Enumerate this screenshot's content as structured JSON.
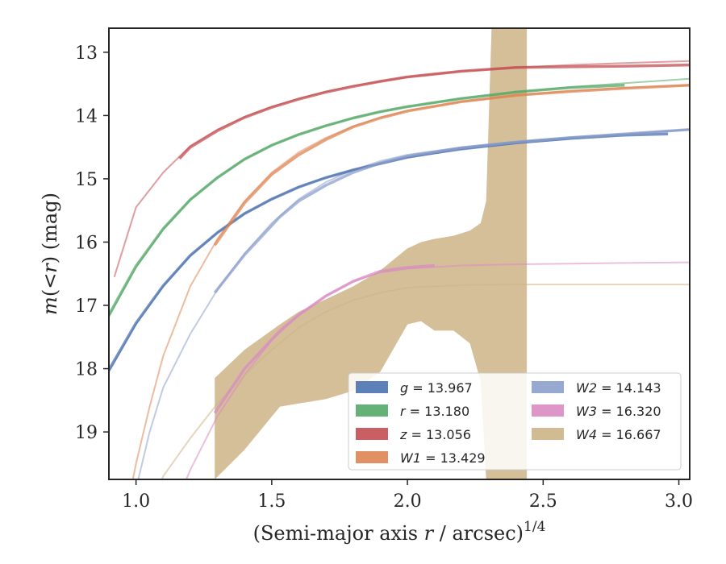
{
  "chart_data": {
    "type": "line",
    "xlabel_main": "(Semi-major axis ",
    "xlabel_var": "r",
    "xlabel_rest": " / arcsec)",
    "xlabel_sup": "1/4",
    "ylabel_var": "m",
    "ylabel_mid": "(<",
    "ylabel_var2": "r",
    "ylabel_rest": ") (mag)",
    "xlim": [
      0.9,
      3.04
    ],
    "ylim": [
      19.75,
      12.62
    ],
    "xticks": [
      1.0,
      1.5,
      2.0,
      2.5,
      3.0
    ],
    "xtick_labels": [
      "1.0",
      "1.5",
      "2.0",
      "2.5",
      "3.0"
    ],
    "yticks": [
      13,
      14,
      15,
      16,
      17,
      18,
      19
    ],
    "ytick_labels": [
      "13",
      "14",
      "15",
      "16",
      "17",
      "18",
      "19"
    ],
    "legend_position": "lower-right",
    "series": [
      {
        "name": "g",
        "label": "g = 13.967",
        "color": "#4c72b0",
        "model_x": [
          0.9,
          1.0,
          1.1,
          1.2,
          1.3,
          1.4,
          1.5,
          1.6,
          1.7,
          1.8,
          1.9,
          2.0,
          2.2,
          2.4,
          2.6,
          2.8,
          3.04
        ],
        "model_y": [
          18.05,
          17.3,
          16.7,
          16.22,
          15.85,
          15.55,
          15.32,
          15.13,
          14.98,
          14.86,
          14.76,
          14.66,
          14.54,
          14.44,
          14.37,
          14.3,
          14.22
        ],
        "data_x": [
          0.9,
          1.0,
          1.1,
          1.2,
          1.3,
          1.4,
          1.5,
          1.6,
          1.7,
          1.8,
          1.9,
          2.0,
          2.2,
          2.4,
          2.6,
          2.8,
          2.96
        ],
        "data_y": [
          18.02,
          17.28,
          16.69,
          16.21,
          15.85,
          15.55,
          15.32,
          15.13,
          14.98,
          14.86,
          14.76,
          14.66,
          14.52,
          14.43,
          14.36,
          14.31,
          14.29
        ]
      },
      {
        "name": "r",
        "label": "r = 13.180",
        "color": "#55a868",
        "model_x": [
          0.9,
          1.0,
          1.1,
          1.2,
          1.3,
          1.4,
          1.5,
          1.6,
          1.7,
          1.8,
          1.9,
          2.0,
          2.2,
          2.4,
          2.6,
          2.8,
          3.04
        ],
        "model_y": [
          17.18,
          16.4,
          15.8,
          15.33,
          14.98,
          14.69,
          14.47,
          14.3,
          14.16,
          14.04,
          13.94,
          13.86,
          13.73,
          13.63,
          13.55,
          13.49,
          13.42
        ],
        "data_x": [
          0.9,
          1.0,
          1.1,
          1.2,
          1.3,
          1.4,
          1.5,
          1.6,
          1.7,
          1.8,
          1.9,
          2.0,
          2.2,
          2.4,
          2.6,
          2.8
        ],
        "data_y": [
          17.15,
          16.38,
          15.79,
          15.33,
          14.98,
          14.69,
          14.47,
          14.3,
          14.16,
          14.04,
          13.94,
          13.86,
          13.73,
          13.63,
          13.56,
          13.52
        ]
      },
      {
        "name": "z",
        "label": "z = 13.056",
        "color": "#c44e52",
        "model_x": [
          0.92,
          1.0,
          1.1,
          1.2,
          1.3,
          1.4,
          1.5,
          1.6,
          1.7,
          1.8,
          1.9,
          2.0,
          2.2,
          2.4,
          2.6,
          2.8,
          3.04
        ],
        "model_y": [
          16.55,
          15.45,
          14.9,
          14.48,
          14.22,
          14.02,
          13.86,
          13.73,
          13.62,
          13.53,
          13.46,
          13.39,
          13.3,
          13.24,
          13.2,
          13.17,
          13.14
        ],
        "data_x": [
          1.16,
          1.2,
          1.3,
          1.4,
          1.5,
          1.6,
          1.7,
          1.8,
          1.9,
          2.0,
          2.2,
          2.4,
          2.6,
          2.8,
          3.04
        ],
        "data_y": [
          14.68,
          14.5,
          14.24,
          14.03,
          13.87,
          13.74,
          13.63,
          13.54,
          13.46,
          13.39,
          13.3,
          13.24,
          13.23,
          13.22,
          13.2
        ]
      },
      {
        "name": "W1",
        "label": "W1 = 13.429",
        "color": "#dd8452",
        "model_x": [
          0.91,
          0.95,
          1.0,
          1.05,
          1.1,
          1.2,
          1.3,
          1.4,
          1.5,
          1.6,
          1.7,
          1.8,
          1.9,
          2.0,
          2.2,
          2.4,
          2.6,
          2.8,
          3.04
        ],
        "model_y": [
          21.5,
          20.6,
          19.5,
          18.6,
          17.8,
          16.7,
          15.95,
          15.35,
          14.9,
          14.58,
          14.35,
          14.17,
          14.03,
          13.92,
          13.78,
          13.68,
          13.61,
          13.56,
          13.52
        ],
        "data_x": [
          1.29,
          1.4,
          1.5,
          1.6,
          1.7,
          1.8,
          1.9,
          2.0,
          2.2,
          2.4,
          2.6,
          2.8,
          3.04
        ],
        "data_y": [
          16.05,
          15.38,
          14.93,
          14.62,
          14.38,
          14.18,
          14.04,
          13.93,
          13.78,
          13.68,
          13.62,
          13.57,
          13.52
        ]
      },
      {
        "name": "W2",
        "label": "W2 = 14.143",
        "color": "#8c9fcc",
        "model_x": [
          0.95,
          1.0,
          1.05,
          1.1,
          1.2,
          1.3,
          1.4,
          1.5,
          1.6,
          1.7,
          1.8,
          1.9,
          2.0,
          2.2,
          2.4,
          2.6,
          2.8,
          3.04
        ],
        "model_y": [
          21.0,
          19.9,
          19.0,
          18.3,
          17.45,
          16.75,
          16.18,
          15.7,
          15.32,
          15.05,
          14.86,
          14.72,
          14.62,
          14.5,
          14.41,
          14.34,
          14.29,
          14.22
        ],
        "data_x": [
          1.29,
          1.4,
          1.53,
          1.6,
          1.7,
          1.8,
          1.9,
          2.0,
          2.2,
          2.4,
          2.6,
          2.8,
          3.04
        ],
        "data_y": [
          16.8,
          16.2,
          15.6,
          15.35,
          15.1,
          14.9,
          14.75,
          14.64,
          14.51,
          14.42,
          14.35,
          14.29,
          14.22
        ]
      },
      {
        "name": "W3",
        "label": "W3 = 16.320",
        "color": "#da8bc3",
        "model_x": [
          1.1,
          1.2,
          1.3,
          1.4,
          1.5,
          1.6,
          1.7,
          1.8,
          1.9,
          2.0,
          2.2,
          2.4,
          2.6,
          2.8,
          3.04
        ],
        "model_y": [
          20.6,
          19.6,
          18.75,
          18.1,
          17.55,
          17.15,
          16.85,
          16.62,
          16.48,
          16.42,
          16.37,
          16.35,
          16.34,
          16.33,
          16.32
        ],
        "data_x": [
          1.29,
          1.4,
          1.53,
          1.6,
          1.7,
          1.8,
          1.9,
          2.0,
          2.1
        ],
        "data_y": [
          18.7,
          18.0,
          17.4,
          17.15,
          16.85,
          16.62,
          16.46,
          16.4,
          16.37
        ]
      },
      {
        "name": "W4",
        "label": "W4 = 16.667",
        "color": "#ccb487",
        "model_x": [
          1.0,
          1.1,
          1.2,
          1.3,
          1.4,
          1.5,
          1.6,
          1.7,
          1.8,
          1.9,
          2.0,
          2.2,
          2.4,
          2.6,
          2.8,
          3.04
        ],
        "model_y": [
          20.7,
          19.7,
          19.1,
          18.55,
          18.1,
          17.7,
          17.35,
          17.1,
          16.92,
          16.8,
          16.72,
          16.68,
          16.67,
          16.67,
          16.67,
          16.67
        ],
        "band_x": [
          1.29,
          1.4,
          1.53,
          1.6,
          1.7,
          1.8,
          1.9,
          2.0,
          2.05,
          2.1,
          2.17,
          2.23,
          2.27,
          2.29,
          2.31,
          2.44
        ],
        "band_lower": [
          19.75,
          19.28,
          18.6,
          18.55,
          18.48,
          18.35,
          18.05,
          17.3,
          17.25,
          17.4,
          17.4,
          17.6,
          18.2,
          19.75,
          19.75,
          19.75
        ],
        "band_upper": [
          18.15,
          17.7,
          17.3,
          17.1,
          16.9,
          16.7,
          16.45,
          16.1,
          16.0,
          15.95,
          15.9,
          15.82,
          15.7,
          15.35,
          12.62,
          12.62
        ]
      }
    ]
  }
}
